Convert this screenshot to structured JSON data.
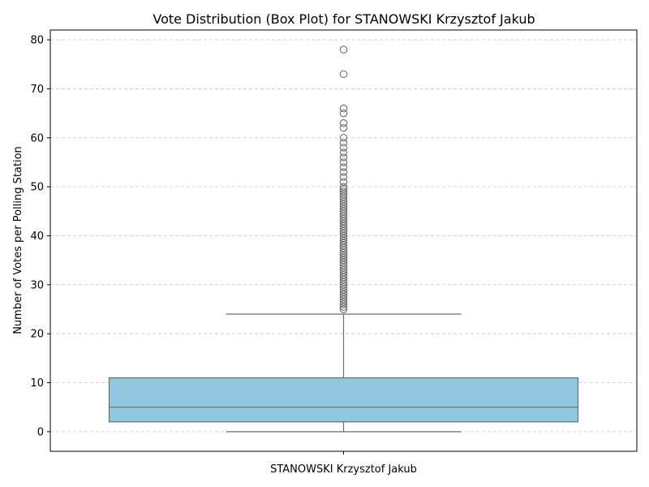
{
  "chart_data": {
    "type": "box",
    "title": "Vote Distribution (Box Plot) for STANOWSKI Krzysztof Jakub",
    "xlabel": "",
    "ylabel": "Number of Votes per Polling Station",
    "categories": [
      "STANOWSKI Krzysztof Jakub"
    ],
    "ylim": [
      -4,
      82
    ],
    "yticks": [
      0,
      10,
      20,
      30,
      40,
      50,
      60,
      70,
      80
    ],
    "grid": "y-dashed",
    "box": {
      "whisker_low": 0,
      "q1": 2,
      "median": 5,
      "q3": 11,
      "whisker_high": 24
    },
    "outliers": [
      25,
      25.5,
      26,
      26.5,
      27,
      27.5,
      28,
      28.5,
      29,
      29.5,
      30,
      30.5,
      31,
      31.5,
      32,
      32.5,
      33,
      33.5,
      34,
      34.5,
      35,
      35.5,
      36,
      36.5,
      37,
      37.5,
      38,
      38.5,
      39,
      39.5,
      40,
      40.5,
      41,
      41.5,
      42,
      42.5,
      43,
      43.5,
      44,
      44.5,
      45,
      45.5,
      46,
      46.5,
      47,
      47.5,
      48,
      48.5,
      49,
      49.5,
      50,
      51,
      52,
      53,
      54,
      55,
      56,
      57,
      58,
      59,
      60,
      62,
      63,
      65,
      66,
      73,
      78
    ],
    "colors": {
      "box_fill": "#92c8df",
      "line": "#6d6d6d",
      "grid": "#c8c8c8"
    }
  }
}
